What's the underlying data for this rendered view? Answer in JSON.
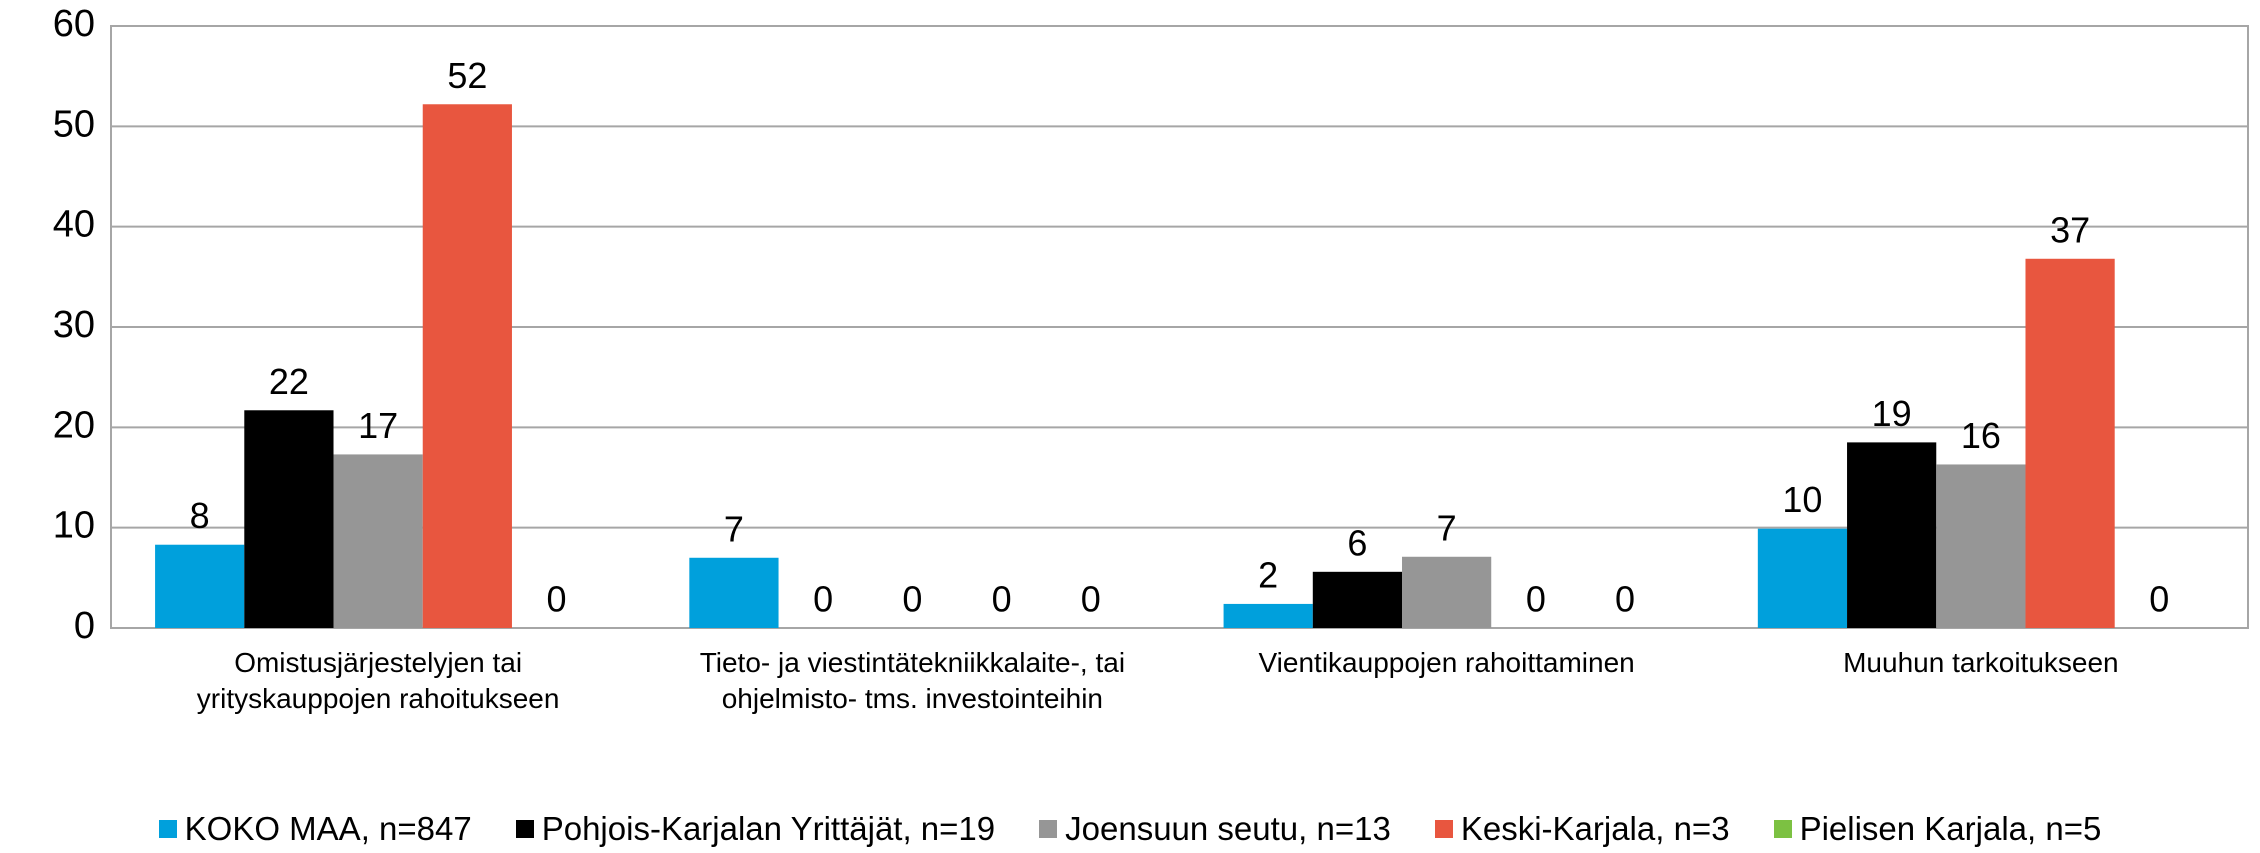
{
  "chart_data": {
    "type": "bar",
    "categories": [
      "Omistusjärjestelyjen tai yrityskauppojen rahoitukseen",
      "Tieto- ja viestintätekniikkalaite-, tai ohjelmisto- tms. investointeihin",
      "Vientikauppojen rahoittaminen",
      "Muuhun tarkoitukseen"
    ],
    "series": [
      {
        "name": "KOKO MAA, n=847",
        "color": "#00a0dc",
        "values": [
          8.3,
          7.0,
          2.4,
          9.9
        ],
        "value_labels": [
          "8",
          "7",
          "2",
          "10"
        ]
      },
      {
        "name": "Pohjois-Karjalan Yrittäjät, n=19",
        "color": "#000000",
        "values": [
          21.7,
          0,
          5.6,
          18.5
        ],
        "value_labels": [
          "22",
          "0",
          "6",
          "19"
        ]
      },
      {
        "name": "Joensuun seutu, n=13",
        "color": "#969696",
        "values": [
          17.3,
          0,
          7.1,
          16.3
        ],
        "value_labels": [
          "17",
          "0",
          "7",
          "16"
        ]
      },
      {
        "name": "Keski-Karjala, n=3",
        "color": "#e8563f",
        "values": [
          52.2,
          0,
          0,
          36.8
        ],
        "value_labels": [
          "52",
          "0",
          "0",
          "37"
        ]
      },
      {
        "name": "Pielisen Karjala, n=5",
        "color": "#7cc142",
        "values": [
          0,
          0,
          0,
          0
        ],
        "value_labels": [
          "0",
          "0",
          "0",
          "0"
        ]
      }
    ],
    "ylim": [
      0,
      60
    ],
    "yticks": [
      0,
      10,
      20,
      30,
      40,
      50,
      60
    ],
    "grid": true,
    "legend": "bottom"
  }
}
